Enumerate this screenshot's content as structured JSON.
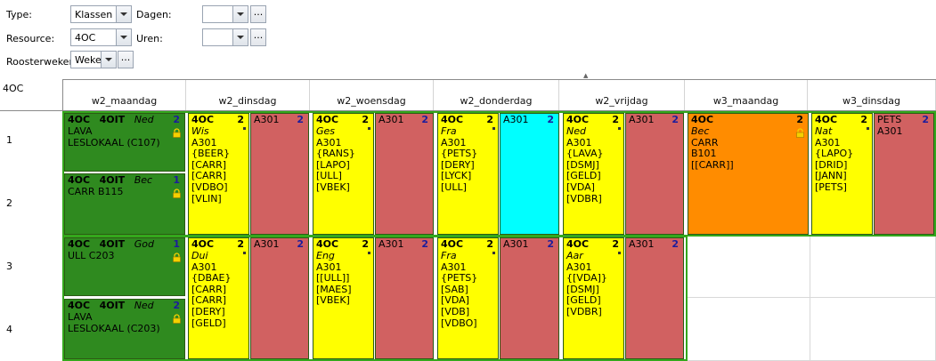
{
  "filters": {
    "type": {
      "label": "Type:",
      "value": "Klassen"
    },
    "dagen": {
      "label": "Dagen:",
      "value": ""
    },
    "resource": {
      "label": "Resource:",
      "value": "4OC"
    },
    "uren": {
      "label": "Uren:",
      "value": ""
    },
    "roosterweken": {
      "label": "Roosterweken",
      "value": "Weken"
    },
    "dots": "..."
  },
  "grid": {
    "corner": "4OC",
    "days": [
      "w2_maandag",
      "w2_dinsdag",
      "w2_woensdag",
      "w2_donderdag",
      "w2_vrijdag",
      "w3_maandag",
      "w3_dinsdag"
    ],
    "rows": [
      "1",
      "2",
      "3",
      "4"
    ]
  },
  "lessons": {
    "mon_a": {
      "class1": "4OC",
      "class2": "4OIT",
      "subject": "Ned",
      "num": "2",
      "lines": [
        "LAVA",
        "LESLOKAAL  (C107)"
      ]
    },
    "mon_b": {
      "class1": "4OC",
      "class2": "4OIT",
      "subject": "Bec",
      "num": "1",
      "lines": [
        "CARR   B115"
      ]
    },
    "mon_c": {
      "class1": "4OC",
      "class2": "4OIT",
      "subject": "God",
      "num": "1",
      "lines": [
        "ULL   C203"
      ]
    },
    "mon_d": {
      "class1": "4OC",
      "class2": "4OIT",
      "subject": "Ned",
      "num": "2",
      "lines": [
        "LAVA",
        "LESLOKAAL  (C203)"
      ]
    },
    "tue_a": {
      "class1": "4OC",
      "subject": "Wis",
      "num": "2",
      "lines": [
        "A301",
        "{BEER}",
        "[CARR]",
        "[CARR]",
        "[VDBO]",
        "[VLIN]"
      ]
    },
    "tue_a_red": {
      "room": "A301",
      "num": "2"
    },
    "tue_b": {
      "class1": "4OC",
      "subject": "Dui",
      "num": "2",
      "lines": [
        "A301",
        "{DBAE}",
        "[CARR]",
        "[CARR]",
        "[DERY]",
        "[GELD]"
      ]
    },
    "tue_b_red": {
      "room": "A301",
      "num": "2"
    },
    "wed_a": {
      "class1": "4OC",
      "subject": "Ges",
      "num": "2",
      "lines": [
        "A301",
        "{RANS}",
        "[LAPO]",
        "[ULL]",
        "[VBEK]"
      ]
    },
    "wed_a_red": {
      "room": "A301",
      "num": "2"
    },
    "wed_b": {
      "class1": "4OC",
      "subject": "Eng",
      "num": "2",
      "lines": [
        "A301",
        "[[ULL]]",
        "[MAES]",
        "[VBEK]"
      ]
    },
    "wed_b_red": {
      "room": "A301",
      "num": "2"
    },
    "thu_a": {
      "class1": "4OC",
      "subject": "Fra",
      "num": "2",
      "lines": [
        "A301",
        "{PETS}",
        "[DERY]",
        "[LYCK]",
        "[ULL]"
      ]
    },
    "thu_a_cyan": {
      "room": "A301",
      "num": "2"
    },
    "thu_b": {
      "class1": "4OC",
      "subject": "Fra",
      "num": "2",
      "lines": [
        "A301",
        "{PETS}",
        "[SAB]",
        "[VDA]",
        "[VDB]",
        "[VDBO]"
      ]
    },
    "thu_b_red": {
      "room": "A301",
      "num": "2"
    },
    "fri_a": {
      "class1": "4OC",
      "subject": "Ned",
      "num": "2",
      "lines": [
        "A301",
        "{LAVA}",
        "[DSMJ]",
        "[GELD]",
        "[VDA]",
        "[VDBR]"
      ]
    },
    "fri_a_red": {
      "room": "A301",
      "num": "2"
    },
    "fri_b": {
      "class1": "4OC",
      "subject": "Aar",
      "num": "2",
      "lines": [
        "A301",
        "{[VDA]}",
        "[DSMJ]",
        "[GELD]",
        "[VDBR]"
      ]
    },
    "fri_b_red": {
      "room": "A301",
      "num": "2"
    },
    "w3mon_a": {
      "class1": "4OC",
      "subject": "Bec",
      "num": "2",
      "lines": [
        "CARR",
        "B101",
        "[[CARR]]"
      ]
    },
    "w3tue_a": {
      "class1": "4OC",
      "subject": "Nat",
      "num": "2",
      "lines": [
        "A301",
        "{LAPO}",
        "[DRID]",
        "[JANN]",
        "[PETS]"
      ]
    },
    "w3tue_a_red": {
      "room": "PETS",
      "num": "2",
      "lines": [
        "A301"
      ]
    }
  },
  "colors": {
    "green": "#2f8a1f",
    "yellow": "#ffff00",
    "red": "#d16161",
    "cyan": "#00ffff",
    "orange": "#ff8c00",
    "border_green": "#34a81c",
    "num_blue": "#1c1c9c"
  }
}
